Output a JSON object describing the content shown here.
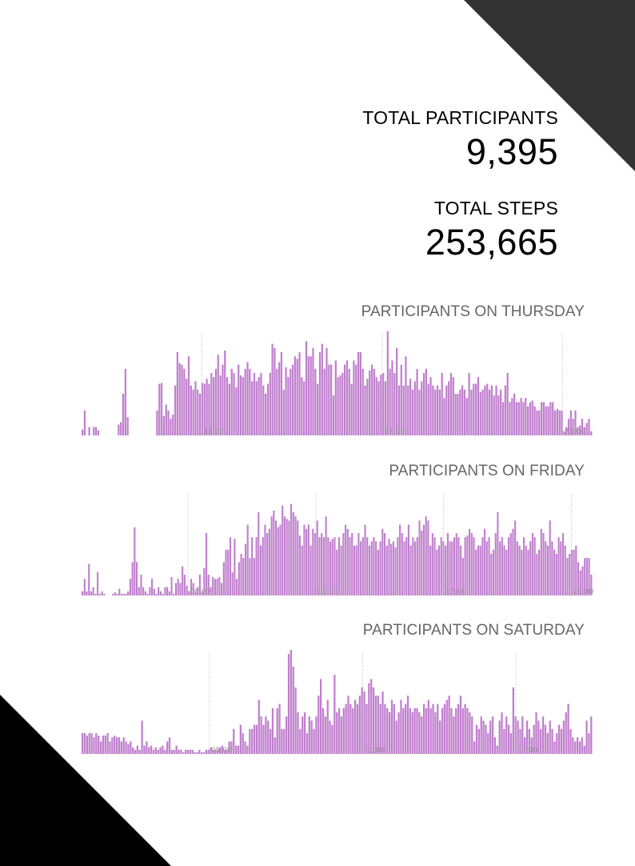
{
  "stats": {
    "participants_label": "TOTAL PARTICIPANTS",
    "participants_value": "9,395",
    "steps_label": "TOTAL STEPS",
    "steps_value": "253,665"
  },
  "colors": {
    "bar": "#c07fce",
    "corner_top_right": "#333333",
    "corner_bottom_left": "#000000",
    "title": "#666666",
    "tick": "#999999"
  },
  "chart_data": [
    {
      "type": "bar",
      "title": "PARTICIPANTS ON THURSDAY",
      "xlabel": "",
      "ylabel": "",
      "x_start": "07:00",
      "x_end": "24:00",
      "tick_labels": [
        "11:00",
        "17:00",
        "23:00"
      ],
      "tick_positions_hours": [
        11,
        17,
        23
      ],
      "ylim": [
        0,
        125
      ],
      "values": [
        7,
        30,
        0,
        10,
        0,
        10,
        10,
        6,
        0,
        0,
        0,
        0,
        0,
        0,
        0,
        0,
        13,
        16,
        50,
        80,
        22,
        0,
        0,
        0,
        0,
        0,
        0,
        0,
        0,
        0,
        0,
        0,
        0,
        30,
        62,
        63,
        23,
        37,
        30,
        20,
        25,
        60,
        100,
        87,
        85,
        80,
        68,
        95,
        60,
        55,
        65,
        55,
        50,
        63,
        62,
        68,
        62,
        75,
        70,
        80,
        97,
        72,
        85,
        102,
        70,
        62,
        80,
        75,
        58,
        85,
        72,
        70,
        80,
        88,
        80,
        65,
        75,
        65,
        70,
        75,
        60,
        50,
        62,
        75,
        110,
        105,
        80,
        88,
        100,
        55,
        82,
        70,
        80,
        85,
        95,
        92,
        100,
        70,
        65,
        113,
        95,
        95,
        105,
        80,
        62,
        100,
        110,
        80,
        105,
        85,
        85,
        48,
        90,
        70,
        72,
        75,
        85,
        90,
        80,
        62,
        90,
        85,
        100,
        100,
        80,
        60,
        68,
        78,
        85,
        80,
        70,
        65,
        73,
        75,
        65,
        125,
        80,
        90,
        75,
        105,
        60,
        85,
        60,
        95,
        60,
        68,
        55,
        65,
        80,
        55,
        65,
        75,
        80,
        62,
        70,
        60,
        55,
        60,
        55,
        75,
        45,
        60,
        65,
        75,
        70,
        50,
        50,
        55,
        60,
        55,
        45,
        75,
        55,
        62,
        62,
        70,
        52,
        55,
        60,
        62,
        55,
        60,
        48,
        60,
        48,
        55,
        40,
        60,
        75,
        40,
        45,
        50,
        40,
        40,
        45,
        40,
        45,
        35,
        40,
        42,
        35,
        30,
        30,
        40,
        40,
        35,
        35,
        40,
        40,
        30,
        32,
        30,
        30,
        5,
        10,
        20,
        30,
        20,
        30,
        10,
        12,
        20,
        10,
        15,
        20,
        5
      ]
    },
    {
      "type": "bar",
      "title": "PARTICIPANTS ON FRIDAY",
      "xlabel": "",
      "ylabel": "",
      "x_start": "00:00",
      "x_end": "24:00",
      "tick_labels": [
        "05:00",
        "11:00",
        "17:00",
        "23:00"
      ],
      "tick_positions_hours": [
        5,
        11,
        17,
        23
      ],
      "ylim": [
        0,
        125
      ],
      "values": [
        5,
        20,
        5,
        38,
        5,
        10,
        2,
        28,
        2,
        5,
        2,
        0,
        0,
        0,
        2,
        4,
        2,
        8,
        2,
        2,
        2,
        5,
        20,
        40,
        82,
        40,
        10,
        25,
        10,
        5,
        2,
        10,
        20,
        8,
        2,
        10,
        5,
        2,
        10,
        10,
        5,
        22,
        2,
        15,
        20,
        15,
        35,
        25,
        12,
        5,
        20,
        15,
        5,
        10,
        25,
        5,
        33,
        75,
        25,
        10,
        22,
        20,
        20,
        22,
        15,
        40,
        55,
        55,
        70,
        28,
        68,
        20,
        40,
        50,
        45,
        62,
        85,
        45,
        70,
        45,
        70,
        100,
        60,
        70,
        85,
        75,
        80,
        95,
        102,
        90,
        82,
        85,
        108,
        95,
        92,
        90,
        110,
        100,
        95,
        90,
        72,
        60,
        85,
        80,
        85,
        60,
        80,
        75,
        90,
        70,
        75,
        70,
        95,
        70,
        65,
        68,
        70,
        55,
        70,
        60,
        75,
        85,
        80,
        70,
        75,
        60,
        60,
        75,
        65,
        70,
        85,
        70,
        60,
        65,
        70,
        65,
        55,
        65,
        80,
        75,
        60,
        68,
        62,
        65,
        58,
        70,
        85,
        75,
        65,
        70,
        85,
        60,
        70,
        65,
        70,
        90,
        78,
        85,
        95,
        90,
        60,
        75,
        70,
        55,
        60,
        70,
        65,
        60,
        75,
        65,
        65,
        70,
        75,
        70,
        60,
        45,
        70,
        72,
        80,
        75,
        70,
        55,
        60,
        60,
        70,
        80,
        65,
        70,
        50,
        55,
        75,
        100,
        65,
        70,
        60,
        55,
        70,
        75,
        80,
        90,
        65,
        60,
        55,
        70,
        60,
        55,
        65,
        75,
        70,
        50,
        55,
        80,
        75,
        65,
        60,
        90,
        65,
        55,
        50,
        70,
        65,
        75,
        60,
        45,
        50,
        55,
        55,
        60,
        40,
        30,
        35,
        45,
        45,
        45,
        25
      ]
    },
    {
      "type": "bar",
      "title": "PARTICIPANTS ON SATURDAY",
      "xlabel": "",
      "ylabel": "",
      "x_start": "00:00",
      "x_end": "20:00",
      "tick_labels": [
        "05:00",
        "11:00",
        "17:00"
      ],
      "tick_positions_hours": [
        5,
        11,
        17
      ],
      "ylim": [
        0,
        125
      ],
      "values": [
        25,
        25,
        22,
        25,
        25,
        20,
        25,
        22,
        15,
        22,
        22,
        25,
        15,
        20,
        22,
        20,
        20,
        15,
        20,
        15,
        12,
        15,
        8,
        5,
        10,
        5,
        40,
        10,
        15,
        8,
        10,
        5,
        8,
        5,
        8,
        10,
        5,
        15,
        20,
        5,
        5,
        10,
        5,
        5,
        2,
        5,
        5,
        5,
        5,
        2,
        2,
        5,
        2,
        2,
        5,
        5,
        8,
        5,
        5,
        5,
        8,
        10,
        5,
        5,
        15,
        15,
        30,
        10,
        10,
        35,
        25,
        15,
        10,
        30,
        30,
        35,
        35,
        65,
        45,
        35,
        45,
        40,
        30,
        55,
        20,
        55,
        60,
        30,
        30,
        45,
        120,
        125,
        105,
        80,
        50,
        30,
        45,
        50,
        25,
        45,
        40,
        30,
        45,
        70,
        90,
        55,
        45,
        65,
        40,
        35,
        95,
        50,
        55,
        45,
        55,
        60,
        70,
        60,
        55,
        65,
        60,
        70,
        80,
        75,
        60,
        85,
        90,
        80,
        70,
        70,
        60,
        75,
        60,
        55,
        50,
        65,
        60,
        40,
        50,
        65,
        55,
        60,
        70,
        55,
        50,
        55,
        55,
        50,
        45,
        60,
        55,
        65,
        55,
        60,
        50,
        60,
        40,
        55,
        60,
        65,
        70,
        55,
        45,
        55,
        60,
        70,
        55,
        60,
        55,
        50,
        45,
        15,
        35,
        30,
        45,
        40,
        35,
        25,
        40,
        45,
        20,
        10,
        40,
        50,
        30,
        45,
        35,
        25,
        80,
        45,
        40,
        30,
        45,
        20,
        40,
        30,
        20,
        35,
        50,
        40,
        30,
        45,
        35,
        25,
        40,
        30,
        15,
        25,
        35,
        30,
        40,
        50,
        60,
        30,
        20,
        15,
        20,
        15,
        20,
        10,
        40,
        25,
        45
      ]
    }
  ]
}
